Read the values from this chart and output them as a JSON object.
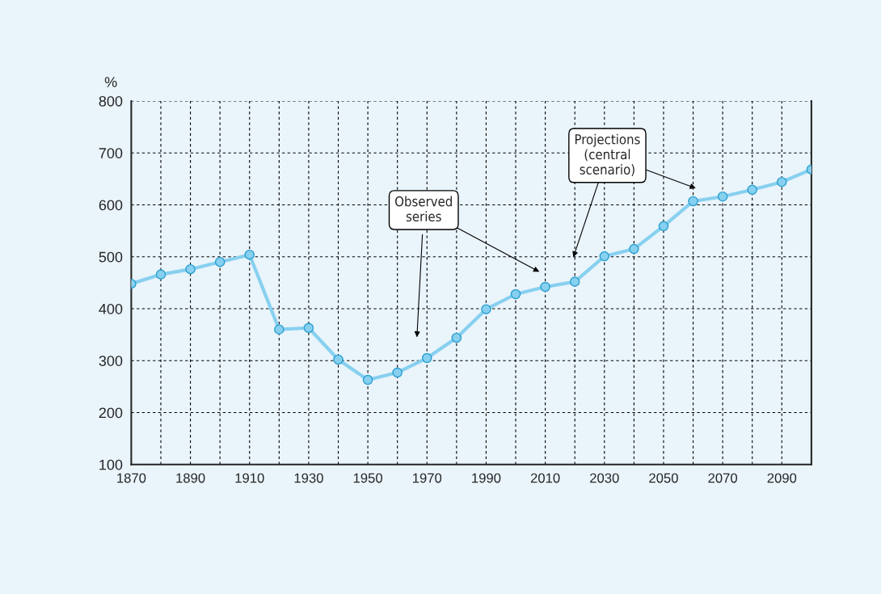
{
  "chart_data": {
    "type": "line",
    "ylabel": "%",
    "x": [
      1870,
      1880,
      1890,
      1900,
      1910,
      1920,
      1930,
      1940,
      1950,
      1960,
      1970,
      1980,
      1990,
      2000,
      2010,
      2020,
      2030,
      2040,
      2050,
      2060,
      2070,
      2080,
      2090,
      2100
    ],
    "series": [
      {
        "color": "#87d0ef",
        "values": [
          448,
          466,
          476,
          490,
          504,
          360,
          363,
          302,
          263,
          277,
          305,
          344,
          399,
          428,
          442,
          452,
          501,
          515,
          559,
          607,
          616,
          629,
          644,
          668
        ]
      }
    ],
    "marker": "circle",
    "xlim": [
      1870,
      2100
    ],
    "xticks": [
      1870,
      {
        "value": 1880,
        "label": null
      },
      1890,
      {
        "value": 1900,
        "label": null
      },
      1910,
      {
        "value": 1920,
        "label": null
      },
      1930,
      {
        "value": 1940,
        "label": null
      },
      1950,
      {
        "value": 1960,
        "label": null
      },
      1970,
      {
        "value": 1980,
        "label": null
      },
      1990,
      {
        "value": 2000,
        "label": null
      },
      2010,
      {
        "value": 2020,
        "label": null
      },
      2030,
      {
        "value": 2040,
        "label": null
      },
      2050,
      {
        "value": 2060,
        "label": null
      },
      2070,
      {
        "value": 2080,
        "label": null
      },
      2090,
      {
        "value": 2100,
        "label": null
      }
    ],
    "ylim": [
      100,
      800
    ],
    "yticks": [
      100,
      200,
      300,
      400,
      500,
      600,
      700,
      800
    ],
    "grid": true,
    "line_style": "solid",
    "annotations": [
      "Observed\nseries",
      "Projections\n(central\nscenario)"
    ]
  }
}
